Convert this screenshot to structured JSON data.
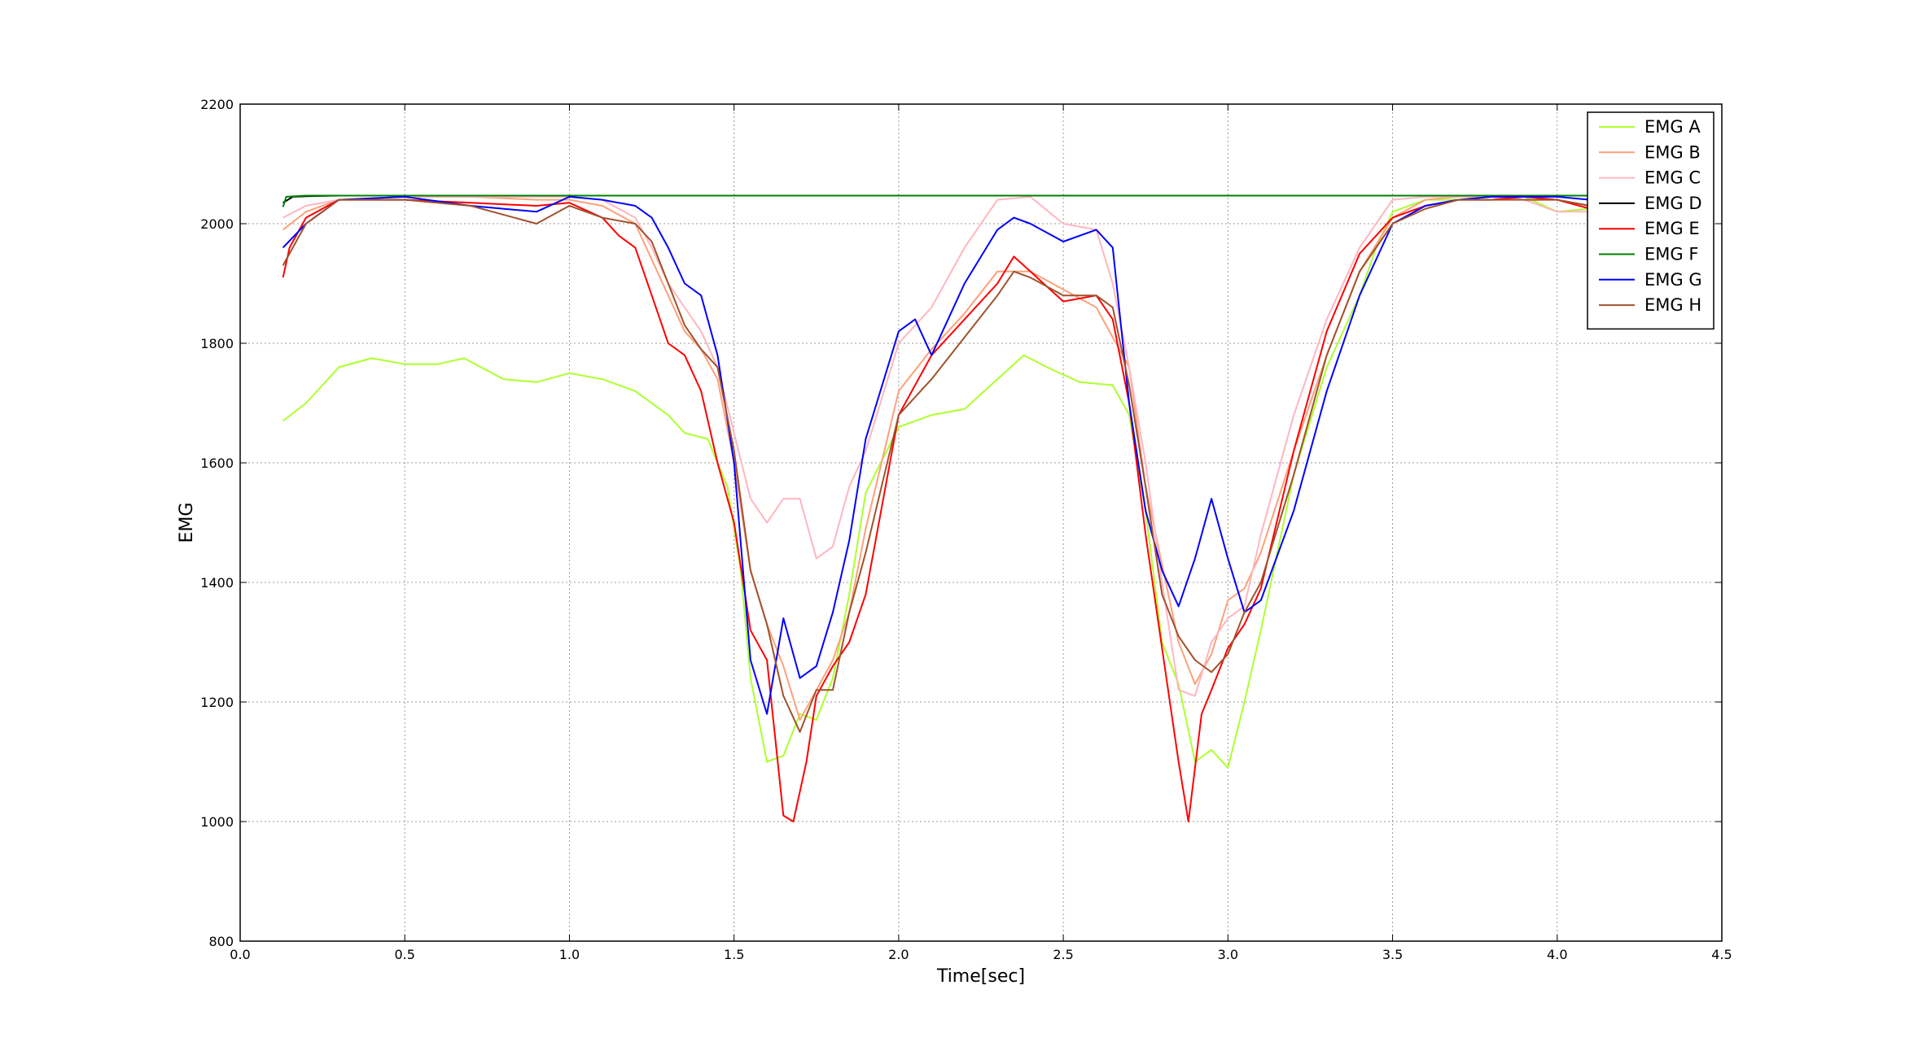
{
  "chart_data": {
    "type": "line",
    "title": "",
    "xlabel": "Time[sec]",
    "ylabel": "EMG",
    "xlim": [
      0.0,
      4.5
    ],
    "ylim": [
      800,
      2200
    ],
    "xticks": [
      "0.0",
      "0.5",
      "1.0",
      "1.5",
      "2.0",
      "2.5",
      "3.0",
      "3.5",
      "4.0",
      "4.5"
    ],
    "yticks": [
      "800",
      "1000",
      "1200",
      "1400",
      "1600",
      "1800",
      "2000",
      "2200"
    ],
    "grid": true,
    "legend_position": "top-right",
    "series": [
      {
        "name": "EMG A",
        "color": "#adff2f",
        "x": [
          0.13,
          0.2,
          0.3,
          0.4,
          0.5,
          0.6,
          0.68,
          0.8,
          0.9,
          1.0,
          1.1,
          1.2,
          1.3,
          1.35,
          1.42,
          1.48,
          1.52,
          1.55,
          1.6,
          1.65,
          1.7,
          1.75,
          1.8,
          1.85,
          1.9,
          2.0,
          2.1,
          2.2,
          2.3,
          2.38,
          2.45,
          2.55,
          2.65,
          2.7,
          2.75,
          2.8,
          2.85,
          2.9,
          2.95,
          3.0,
          3.05,
          3.1,
          3.2,
          3.3,
          3.4,
          3.45,
          3.5,
          3.6,
          3.7,
          3.8,
          3.9,
          4.0,
          4.1
        ],
        "y": [
          1670,
          1700,
          1760,
          1775,
          1765,
          1765,
          1775,
          1740,
          1735,
          1750,
          1740,
          1720,
          1680,
          1650,
          1640,
          1560,
          1420,
          1240,
          1100,
          1110,
          1180,
          1170,
          1240,
          1380,
          1550,
          1660,
          1680,
          1690,
          1740,
          1780,
          1760,
          1735,
          1730,
          1680,
          1520,
          1300,
          1230,
          1100,
          1120,
          1090,
          1200,
          1320,
          1580,
          1760,
          1880,
          1960,
          2020,
          2040,
          2040,
          2045,
          2045,
          2020,
          2025
        ]
      },
      {
        "name": "EMG B",
        "color": "#ffa07a",
        "x": [
          0.13,
          0.2,
          0.3,
          0.5,
          0.7,
          0.9,
          1.0,
          1.1,
          1.2,
          1.25,
          1.3,
          1.35,
          1.4,
          1.45,
          1.5,
          1.55,
          1.6,
          1.65,
          1.7,
          1.75,
          1.8,
          1.85,
          1.9,
          2.0,
          2.1,
          2.2,
          2.3,
          2.4,
          2.5,
          2.6,
          2.7,
          2.75,
          2.8,
          2.85,
          2.9,
          2.95,
          3.0,
          3.05,
          3.1,
          3.2,
          3.3,
          3.4,
          3.5,
          3.6,
          3.7,
          3.8,
          3.9,
          4.0,
          4.1
        ],
        "y": [
          1990,
          2020,
          2040,
          2045,
          2045,
          2040,
          2040,
          2030,
          2000,
          1940,
          1880,
          1820,
          1790,
          1740,
          1600,
          1420,
          1330,
          1260,
          1170,
          1220,
          1270,
          1350,
          1490,
          1720,
          1790,
          1850,
          1920,
          1920,
          1890,
          1860,
          1760,
          1560,
          1430,
          1300,
          1230,
          1280,
          1370,
          1390,
          1450,
          1620,
          1780,
          1920,
          2010,
          2040,
          2045,
          2045,
          2040,
          2040,
          2030
        ]
      },
      {
        "name": "EMG C",
        "color": "#ffb6c1",
        "x": [
          0.13,
          0.2,
          0.3,
          0.5,
          0.7,
          0.9,
          1.0,
          1.1,
          1.2,
          1.25,
          1.3,
          1.35,
          1.4,
          1.45,
          1.5,
          1.55,
          1.6,
          1.65,
          1.7,
          1.75,
          1.8,
          1.85,
          1.9,
          2.0,
          2.1,
          2.2,
          2.3,
          2.4,
          2.5,
          2.6,
          2.65,
          2.7,
          2.75,
          2.8,
          2.85,
          2.9,
          2.95,
          3.0,
          3.05,
          3.1,
          3.2,
          3.3,
          3.4,
          3.5,
          3.6,
          3.7,
          3.8,
          3.9,
          4.0,
          4.1
        ],
        "y": [
          2010,
          2030,
          2040,
          2045,
          2045,
          2045,
          2045,
          2040,
          2010,
          1960,
          1900,
          1860,
          1820,
          1760,
          1650,
          1540,
          1500,
          1540,
          1540,
          1440,
          1460,
          1560,
          1620,
          1800,
          1860,
          1960,
          2040,
          2045,
          2000,
          1990,
          1900,
          1760,
          1600,
          1400,
          1220,
          1210,
          1300,
          1340,
          1360,
          1480,
          1680,
          1840,
          1960,
          2040,
          2045,
          2045,
          2045,
          2040,
          2020,
          2020
        ]
      },
      {
        "name": "EMG D",
        "color": "#000000",
        "x": [
          0.13,
          0.16,
          0.2,
          0.3,
          0.5,
          0.8,
          1.0,
          1.5,
          2.0,
          2.5,
          3.0,
          3.5,
          4.0,
          4.1
        ],
        "y": [
          2035,
          2045,
          2046,
          2047,
          2047,
          2047,
          2047,
          2047,
          2047,
          2047,
          2047,
          2047,
          2047,
          2047
        ]
      },
      {
        "name": "EMG E",
        "color": "#ff0000",
        "x": [
          0.13,
          0.15,
          0.2,
          0.3,
          0.5,
          0.7,
          0.9,
          1.0,
          1.1,
          1.15,
          1.2,
          1.25,
          1.3,
          1.35,
          1.4,
          1.45,
          1.5,
          1.55,
          1.6,
          1.65,
          1.68,
          1.72,
          1.75,
          1.8,
          1.85,
          1.9,
          2.0,
          2.1,
          2.2,
          2.3,
          2.35,
          2.4,
          2.5,
          2.6,
          2.65,
          2.7,
          2.75,
          2.8,
          2.85,
          2.88,
          2.92,
          2.95,
          3.0,
          3.05,
          3.1,
          3.2,
          3.3,
          3.4,
          3.5,
          3.6,
          3.7,
          3.8,
          3.9,
          4.0,
          4.1
        ],
        "y": [
          1910,
          1960,
          2010,
          2040,
          2040,
          2035,
          2030,
          2035,
          2010,
          1980,
          1960,
          1880,
          1800,
          1780,
          1720,
          1600,
          1500,
          1320,
          1270,
          1010,
          1000,
          1100,
          1210,
          1260,
          1300,
          1380,
          1680,
          1780,
          1840,
          1900,
          1945,
          1920,
          1870,
          1880,
          1840,
          1700,
          1480,
          1290,
          1100,
          1000,
          1180,
          1220,
          1290,
          1330,
          1390,
          1620,
          1820,
          1950,
          2010,
          2030,
          2040,
          2040,
          2045,
          2040,
          2025
        ]
      },
      {
        "name": "EMG F",
        "color": "#008000",
        "x": [
          0.13,
          0.14,
          0.2,
          0.5,
          1.0,
          1.5,
          2.0,
          2.5,
          3.0,
          3.5,
          4.0,
          4.1
        ],
        "y": [
          2028,
          2045,
          2047,
          2047,
          2047,
          2047,
          2047,
          2047,
          2047,
          2047,
          2047,
          2047
        ]
      },
      {
        "name": "EMG G",
        "color": "#0000ff",
        "x": [
          0.13,
          0.2,
          0.3,
          0.5,
          0.7,
          0.9,
          1.0,
          1.1,
          1.2,
          1.25,
          1.3,
          1.35,
          1.4,
          1.45,
          1.5,
          1.55,
          1.6,
          1.65,
          1.7,
          1.75,
          1.8,
          1.85,
          1.9,
          2.0,
          2.05,
          2.1,
          2.15,
          2.2,
          2.3,
          2.35,
          2.4,
          2.5,
          2.6,
          2.65,
          2.7,
          2.75,
          2.8,
          2.85,
          2.9,
          2.95,
          3.0,
          3.05,
          3.1,
          3.2,
          3.3,
          3.4,
          3.5,
          3.6,
          3.7,
          3.8,
          3.9,
          4.0,
          4.1
        ],
        "y": [
          1960,
          2000,
          2040,
          2045,
          2030,
          2020,
          2045,
          2040,
          2030,
          2010,
          1960,
          1900,
          1880,
          1780,
          1600,
          1270,
          1180,
          1340,
          1240,
          1260,
          1350,
          1470,
          1640,
          1820,
          1840,
          1780,
          1840,
          1900,
          1990,
          2010,
          2000,
          1970,
          1990,
          1960,
          1700,
          1520,
          1420,
          1360,
          1440,
          1540,
          1440,
          1350,
          1370,
          1520,
          1720,
          1880,
          2000,
          2030,
          2040,
          2045,
          2045,
          2045,
          2040
        ]
      },
      {
        "name": "EMG H",
        "color": "#a0522d",
        "x": [
          0.13,
          0.2,
          0.3,
          0.5,
          0.7,
          0.9,
          1.0,
          1.1,
          1.2,
          1.25,
          1.3,
          1.35,
          1.4,
          1.45,
          1.5,
          1.55,
          1.6,
          1.65,
          1.7,
          1.75,
          1.8,
          1.85,
          1.9,
          2.0,
          2.1,
          2.2,
          2.3,
          2.35,
          2.4,
          2.5,
          2.6,
          2.65,
          2.7,
          2.75,
          2.8,
          2.85,
          2.9,
          2.95,
          3.0,
          3.05,
          3.1,
          3.2,
          3.3,
          3.4,
          3.5,
          3.6,
          3.7,
          3.8,
          3.9,
          4.0,
          4.1
        ],
        "y": [
          1930,
          2000,
          2040,
          2040,
          2030,
          2000,
          2030,
          2010,
          2000,
          1970,
          1900,
          1830,
          1790,
          1760,
          1620,
          1420,
          1330,
          1210,
          1150,
          1220,
          1220,
          1350,
          1450,
          1680,
          1740,
          1810,
          1880,
          1920,
          1910,
          1880,
          1880,
          1860,
          1730,
          1560,
          1380,
          1310,
          1270,
          1250,
          1280,
          1350,
          1400,
          1580,
          1780,
          1920,
          2000,
          2025,
          2040,
          2040,
          2040,
          2040,
          2030
        ]
      }
    ]
  }
}
